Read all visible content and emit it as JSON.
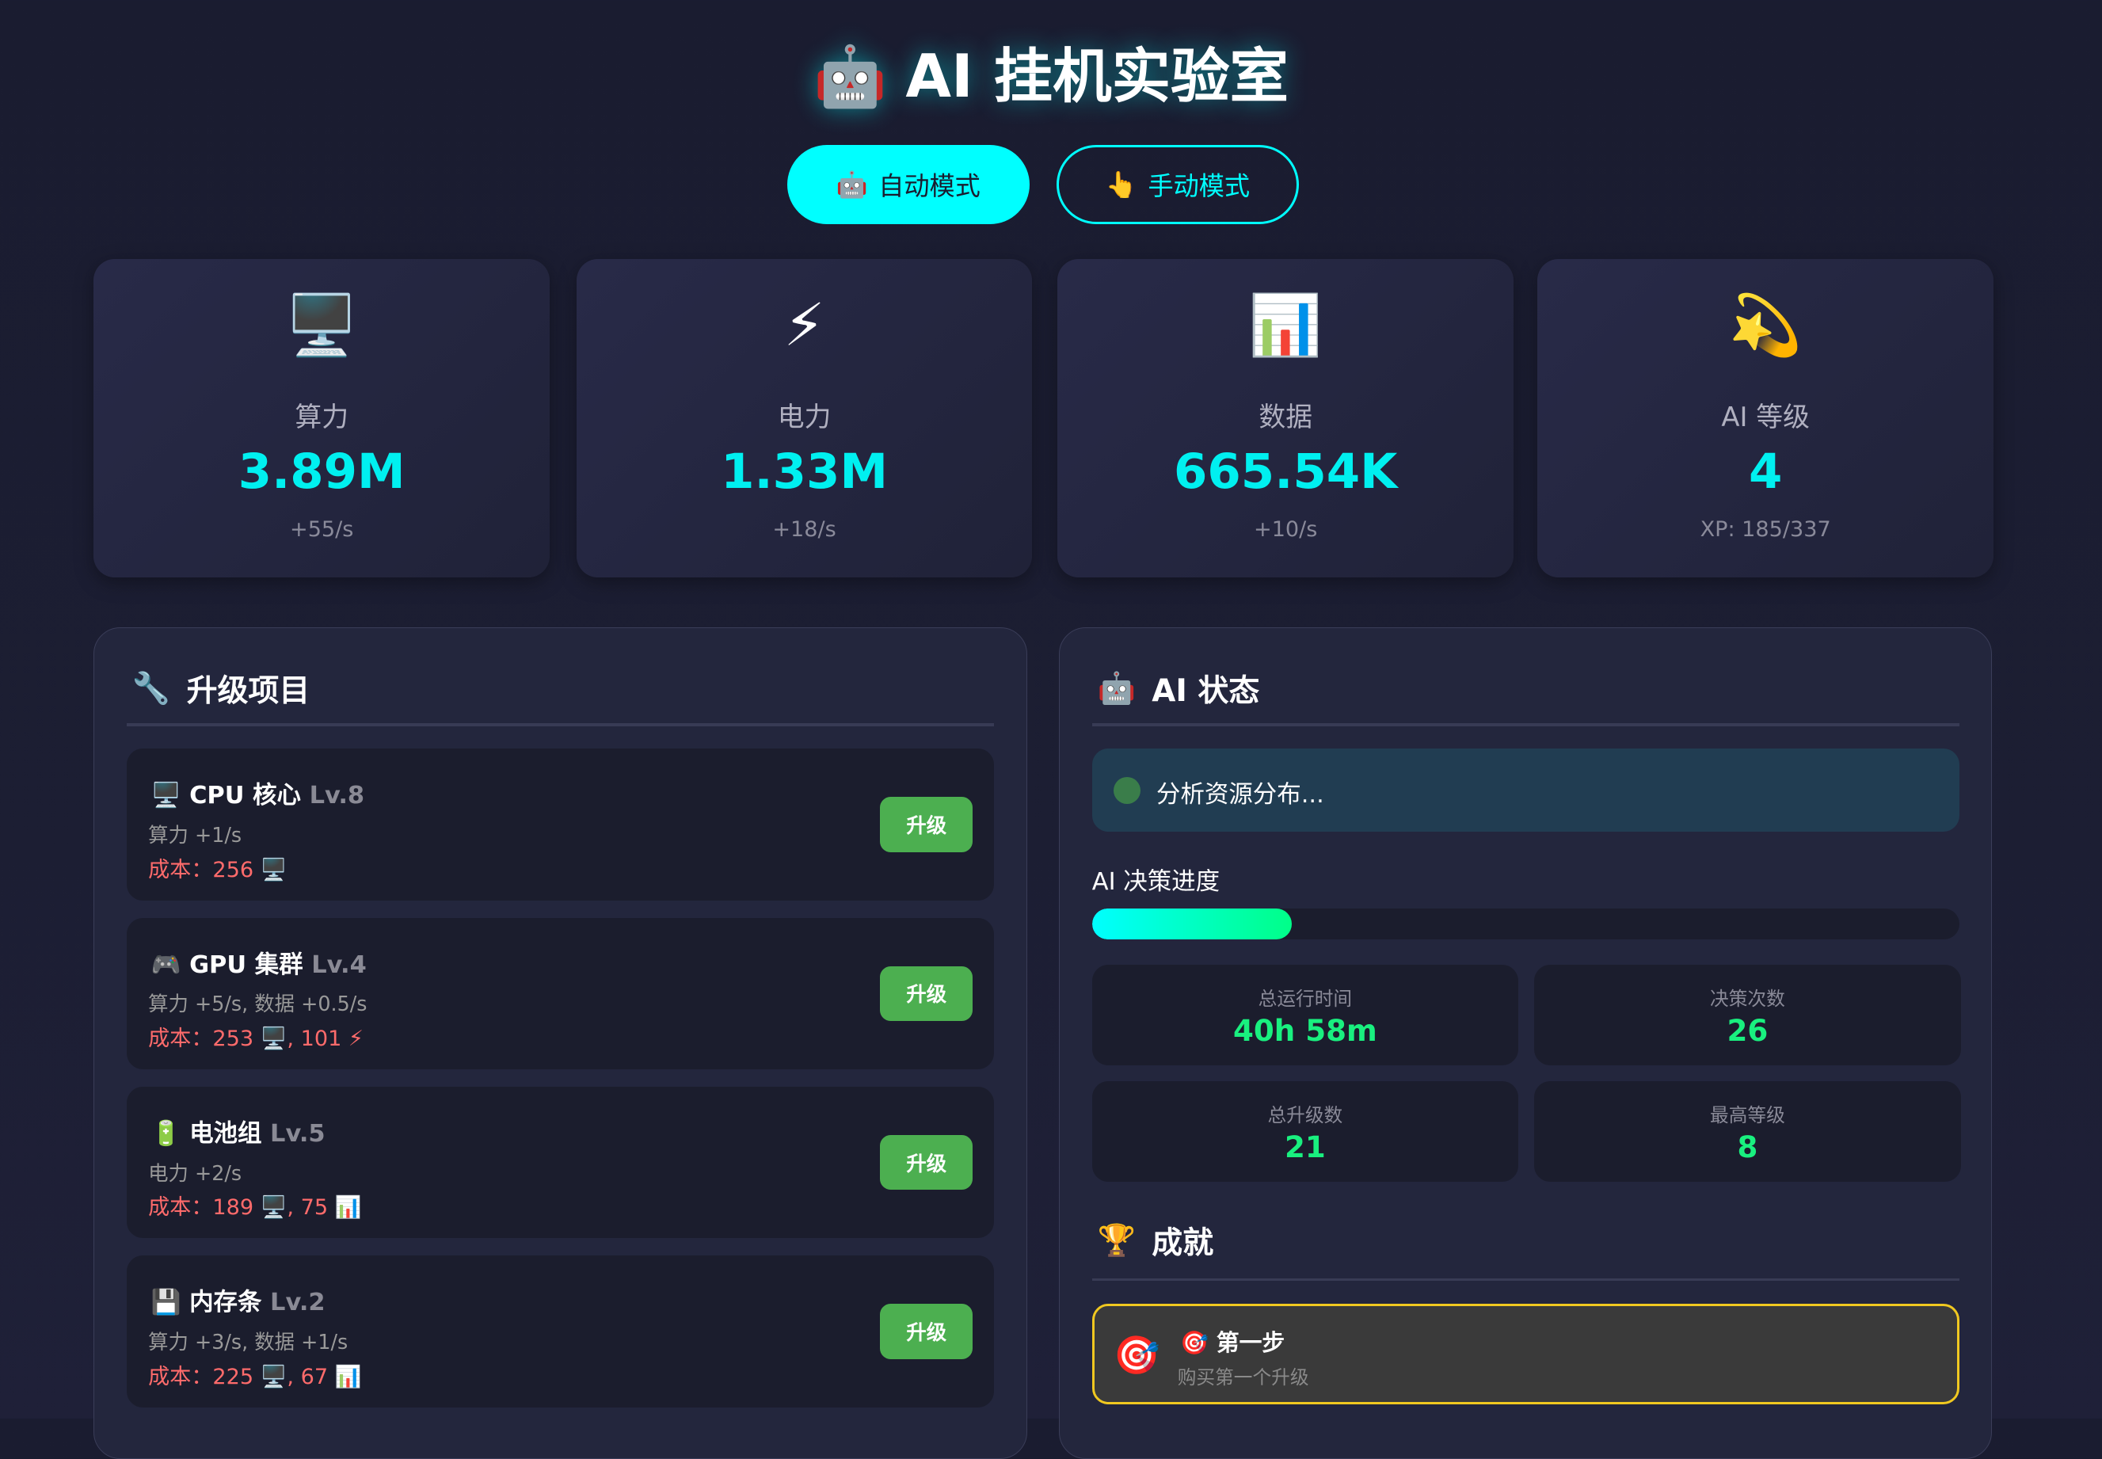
{
  "header": {
    "icon": "🤖",
    "title": "AI 挂机实验室"
  },
  "modes": [
    {
      "icon": "🤖",
      "label": "自动模式",
      "active": true
    },
    {
      "icon": "👆",
      "label": "手动模式",
      "active": false
    }
  ],
  "stats": [
    {
      "icon": "🖥️",
      "label": "算力",
      "value": "3.89M",
      "sub": "+55/s"
    },
    {
      "icon": "⚡",
      "label": "电力",
      "value": "1.33M",
      "sub": "+18/s"
    },
    {
      "icon": "📊",
      "label": "数据",
      "value": "665.54K",
      "sub": "+10/s"
    },
    {
      "icon": "💫",
      "label": "AI 等级",
      "value": "4",
      "sub": "XP: 185/337"
    }
  ],
  "upgrades": {
    "icon": "🔧",
    "title": "升级项目",
    "items": [
      {
        "icon": "🖥️",
        "name": "CPU 核心",
        "level": "Lv.8",
        "effect": "算力 +1/s",
        "cost": "成本：256 🖥️",
        "button": "升级"
      },
      {
        "icon": "🎮",
        "name": "GPU 集群",
        "level": "Lv.4",
        "effect": "算力 +5/s, 数据 +0.5/s",
        "cost": "成本：253 🖥️, 101 ⚡",
        "button": "升级"
      },
      {
        "icon": "🔋",
        "name": "电池组",
        "level": "Lv.5",
        "effect": "电力 +2/s",
        "cost": "成本：189 🖥️, 75 📊",
        "button": "升级"
      },
      {
        "icon": "💾",
        "name": "内存条",
        "level": "Lv.2",
        "effect": "算力 +3/s, 数据 +1/s",
        "cost": "成本：225 🖥️, 67 📊",
        "button": "升级"
      }
    ]
  },
  "ai_status": {
    "icon": "🤖",
    "title": "AI 状态",
    "status_text": "分析资源分布...",
    "status_color": "#3a7d4a",
    "progress_label": "AI 决策进度",
    "progress_percent": 23,
    "metrics": [
      {
        "label": "总运行时间",
        "value": "40h 58m"
      },
      {
        "label": "决策次数",
        "value": "26"
      },
      {
        "label": "总升级数",
        "value": "21"
      },
      {
        "label": "最高等级",
        "value": "8"
      }
    ]
  },
  "achievements": {
    "icon": "🏆",
    "title": "成就",
    "items": [
      {
        "icon": "🎯",
        "name": "🎯 第一步",
        "desc": "购买第一个升级"
      }
    ]
  },
  "colors": {
    "accent": "#00ffff",
    "success": "#4caf50",
    "cost": "#ff6b6b",
    "metric": "#19f07f",
    "achievement_border": "#f0c820"
  }
}
